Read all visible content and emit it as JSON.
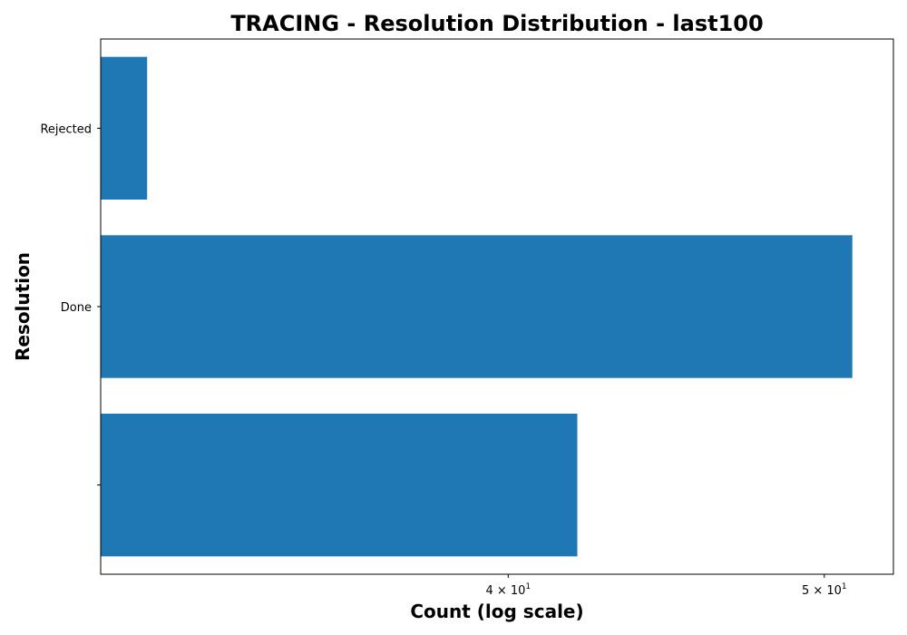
{
  "chart_data": {
    "type": "bar",
    "orientation": "horizontal",
    "title": "TRACING - Resolution Distribution - last100",
    "xlabel": "Count (log scale)",
    "ylabel": "Resolution",
    "x_scale": "log",
    "xlim": [
      30,
      52.5
    ],
    "categories": [
      "",
      "Done",
      "Rejected"
    ],
    "values": [
      42,
      51,
      31
    ],
    "x_ticks": [
      {
        "value": 40,
        "mantissa": "4",
        "base": "10",
        "exponent": "1"
      },
      {
        "value": 50,
        "mantissa": "5",
        "base": "10",
        "exponent": "1"
      }
    ],
    "bar_color": "#1f77b4",
    "grid": false,
    "legend": false
  }
}
